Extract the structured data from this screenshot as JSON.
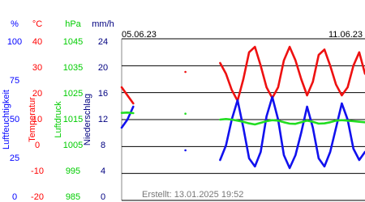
{
  "chart_data": {
    "type": "line",
    "x": [
      0,
      4,
      8,
      12,
      16,
      20,
      24,
      28,
      32,
      36,
      40,
      44,
      48,
      52,
      56,
      60,
      64,
      68,
      72,
      76,
      80,
      84,
      88,
      92,
      96,
      100,
      104,
      108,
      112,
      116,
      120,
      124,
      128,
      132,
      136,
      140,
      144,
      148,
      152,
      156,
      160,
      164,
      168
    ],
    "xlim": [
      0,
      168
    ],
    "xticks": [
      {
        "value": 0,
        "label": "05.06.23"
      },
      {
        "value": 144,
        "label": "11.06.23"
      }
    ],
    "footer": "Erstellt: 13.01.2025 19:52",
    "axes": [
      {
        "unit": "%",
        "title": "Luftfeuchtigkeit",
        "color": "#0000ff",
        "ylim": [
          0,
          100
        ],
        "yticks": [
          0,
          25,
          50,
          75,
          100
        ]
      },
      {
        "unit": "°C",
        "title": "Temperatur",
        "color": "#ff0000",
        "ylim": [
          -20,
          40
        ],
        "yticks": [
          -20,
          -10,
          0,
          10,
          20,
          30,
          40
        ]
      },
      {
        "unit": "hPa",
        "title": "Luftdruck",
        "color": "#00cc00",
        "ylim": [
          985,
          1045
        ],
        "yticks": [
          985,
          995,
          1005,
          1015,
          1025,
          1035,
          1045
        ]
      },
      {
        "unit": "mm/h",
        "title": "Niederschlag",
        "color": "#000080",
        "ylim": [
          0,
          24
        ],
        "yticks": [
          0,
          4,
          8,
          12,
          16,
          20,
          24
        ]
      }
    ],
    "grid": true,
    "series": [
      {
        "axis": 1,
        "color": "#ee1111",
        "values": [
          22,
          19,
          16,
          null,
          null,
          null,
          null,
          null,
          null,
          null,
          null,
          27.7,
          null,
          null,
          null,
          null,
          null,
          31,
          27,
          21,
          17,
          25,
          35,
          37,
          30,
          22,
          18,
          22,
          32,
          37,
          32,
          25,
          19,
          24,
          34,
          36,
          30,
          23,
          19,
          22,
          30,
          35,
          27
        ]
      },
      {
        "axis": 0,
        "color": "#1111ee",
        "values": [
          45,
          50,
          58,
          null,
          null,
          null,
          null,
          null,
          null,
          null,
          null,
          31,
          null,
          null,
          null,
          null,
          null,
          25,
          34,
          50,
          62,
          45,
          26,
          21,
          30,
          52,
          64,
          50,
          28,
          20,
          28,
          42,
          58,
          45,
          26,
          21,
          30,
          45,
          60,
          50,
          32,
          25,
          30
        ]
      },
      {
        "axis": 2,
        "color": "#22dd22",
        "values": [
          1017.5,
          1017.6,
          1017.4,
          null,
          null,
          null,
          null,
          null,
          null,
          null,
          null,
          1017.2,
          null,
          null,
          null,
          null,
          null,
          1015,
          1015.2,
          1015,
          1014.6,
          1014.2,
          1013.6,
          1013.2,
          1013.8,
          1014.4,
          1014.8,
          1014.6,
          1014,
          1013.5,
          1013.4,
          1014,
          1014.6,
          1014.2,
          1013.5,
          1013.6,
          1014,
          1014.6,
          1014.8,
          1014.6,
          1014.4,
          1014.2,
          1014
        ]
      }
    ]
  }
}
